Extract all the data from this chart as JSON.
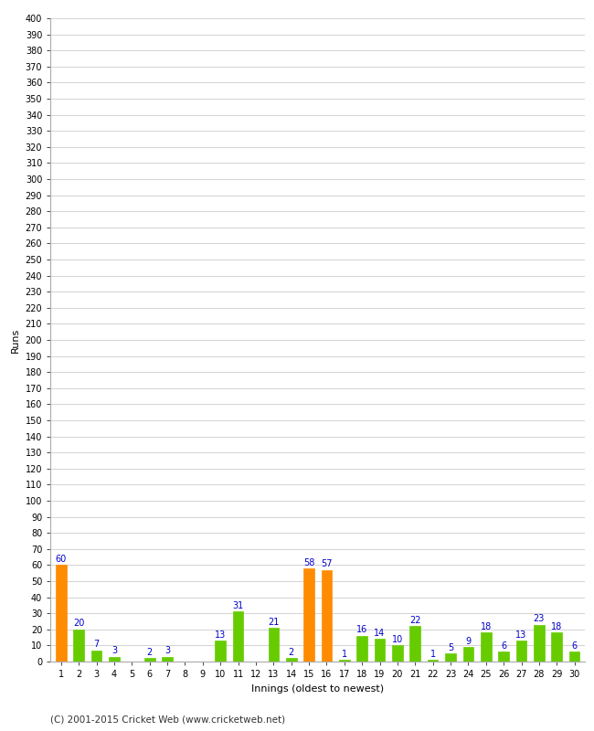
{
  "xlabel": "Innings (oldest to newest)",
  "ylabel": "Runs",
  "values": [
    60,
    20,
    7,
    3,
    0,
    2,
    3,
    0,
    0,
    13,
    31,
    0,
    21,
    2,
    58,
    57,
    1,
    16,
    14,
    10,
    22,
    1,
    5,
    9,
    18,
    6,
    13,
    23,
    18,
    6
  ],
  "colors": [
    "#ff8c00",
    "#66cc00",
    "#66cc00",
    "#66cc00",
    "#66cc00",
    "#66cc00",
    "#66cc00",
    "#66cc00",
    "#66cc00",
    "#66cc00",
    "#66cc00",
    "#66cc00",
    "#66cc00",
    "#66cc00",
    "#ff8c00",
    "#ff8c00",
    "#66cc00",
    "#66cc00",
    "#66cc00",
    "#66cc00",
    "#66cc00",
    "#66cc00",
    "#66cc00",
    "#66cc00",
    "#66cc00",
    "#66cc00",
    "#66cc00",
    "#66cc00",
    "#66cc00",
    "#66cc00"
  ],
  "x_labels": [
    "1",
    "2",
    "3",
    "4",
    "5",
    "6",
    "7",
    "8",
    "9",
    "10",
    "11",
    "12",
    "13",
    "14",
    "15",
    "16",
    "17",
    "18",
    "19",
    "20",
    "21",
    "22",
    "23",
    "24",
    "25",
    "26",
    "27",
    "28",
    "29",
    "30"
  ],
  "ylim": [
    0,
    400
  ],
  "yticks": [
    0,
    10,
    20,
    30,
    40,
    50,
    60,
    70,
    80,
    90,
    100,
    110,
    120,
    130,
    140,
    150,
    160,
    170,
    180,
    190,
    200,
    210,
    220,
    230,
    240,
    250,
    260,
    270,
    280,
    290,
    300,
    310,
    320,
    330,
    340,
    350,
    360,
    370,
    380,
    390,
    400
  ],
  "label_color": "#0000cc",
  "background_color": "#ffffff",
  "grid_color": "#cccccc",
  "footer": "(C) 2001-2015 Cricket Web (www.cricketweb.net)",
  "bar_width": 0.6
}
